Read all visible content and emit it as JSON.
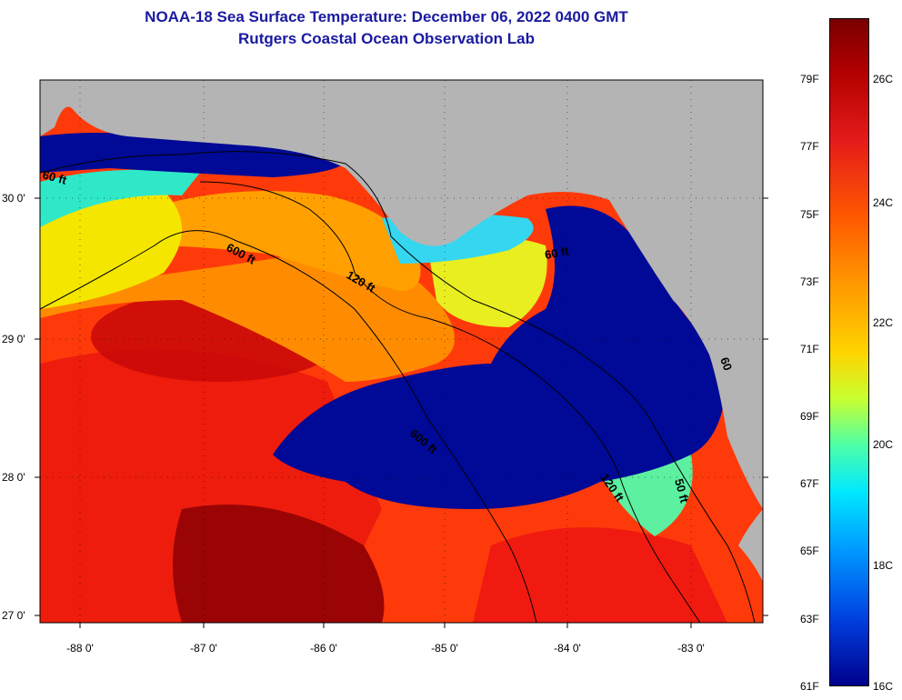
{
  "header": {
    "title": "NOAA-18 Sea Surface Temperature:  December 06, 2022 0400 GMT",
    "subtitle": "Rutgers Coastal Ocean Observation Lab"
  },
  "map": {
    "lat_labels": [
      "30 0'",
      "29 0'",
      "28 0'",
      "27 0'"
    ],
    "lon_labels": [
      "-88 0'",
      "-87 0'",
      "-86 0'",
      "-85 0'",
      "-84 0'",
      "-83 0'"
    ],
    "isobath_labels": [
      "60 ft",
      "600 ft",
      "120 ft",
      "60 ft",
      "600 ft",
      "120 ft",
      "50 ft",
      "60"
    ],
    "colors": {
      "land": "#b4b4b4",
      "warm": "#e02000",
      "cool": "#000a96"
    }
  },
  "legend": {
    "fahrenheit": [
      "79F",
      "77F",
      "75F",
      "73F",
      "71F",
      "69F",
      "67F",
      "65F",
      "63F",
      "61F"
    ],
    "celsius": [
      "26C",
      "24C",
      "22C",
      "20C",
      "18C",
      "16C"
    ]
  }
}
